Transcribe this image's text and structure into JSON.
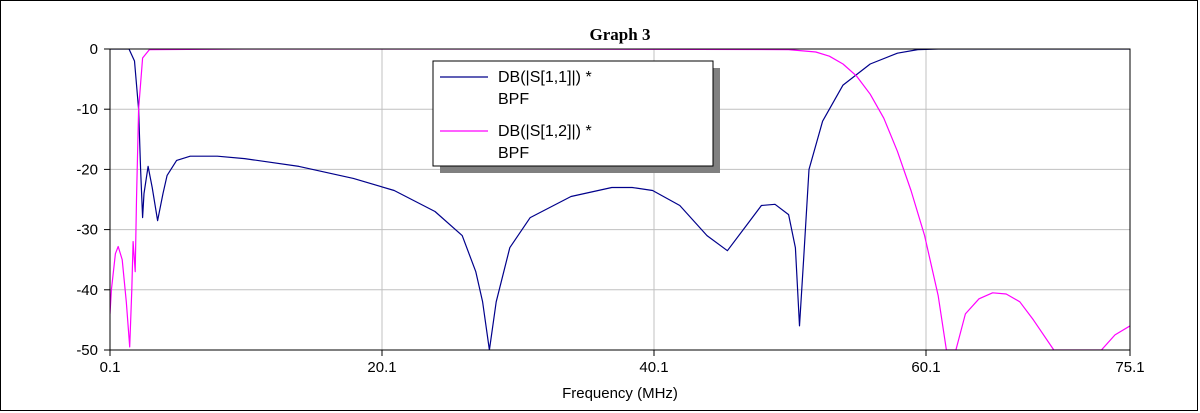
{
  "chart_data": {
    "type": "line",
    "title": "Graph 3",
    "xlabel": "Frequency (MHz)",
    "ylabel": "",
    "xlim": [
      0.1,
      75.1
    ],
    "ylim": [
      -50,
      0
    ],
    "x_ticks": [
      0.1,
      20.1,
      40.1,
      60.1,
      75.1
    ],
    "x_tick_labels": [
      "0.1",
      "20.1",
      "40.1",
      "60.1",
      "75.1"
    ],
    "y_ticks": [
      0,
      -10,
      -20,
      -30,
      -40,
      -50
    ],
    "y_tick_labels": [
      "0",
      "-10",
      "-20",
      "-30",
      "-40",
      "-50"
    ],
    "grid": true,
    "legend_position": "top-center",
    "series": [
      {
        "name": "DB(|S[1,1]|) * BPF",
        "color": "#00008b",
        "x": [
          0.1,
          1.5,
          1.9,
          2.2,
          2.35,
          2.5,
          2.6,
          2.9,
          3.2,
          3.6,
          4.0,
          4.3,
          5.0,
          6.0,
          8.0,
          10.0,
          14.0,
          18.0,
          21.0,
          24.0,
          26.0,
          27.0,
          27.5,
          28.0,
          28.5,
          29.5,
          31.0,
          34.0,
          37.0,
          38.5,
          40.0,
          42.0,
          44.0,
          45.5,
          47.0,
          48.0,
          49.0,
          50.0,
          50.5,
          50.8,
          51.1,
          51.5,
          52.5,
          54.0,
          56.0,
          58.0,
          59.5,
          61.0,
          75.1
        ],
        "y": [
          0,
          0,
          -2,
          -10,
          -20,
          -28,
          -24,
          -19.5,
          -23,
          -28.5,
          -24,
          -21,
          -18.5,
          -17.8,
          -17.8,
          -18.2,
          -19.5,
          -21.5,
          -23.5,
          -27,
          -31,
          -37,
          -42,
          -50,
          -42,
          -33,
          -28,
          -24.5,
          -23,
          -23,
          -23.5,
          -26,
          -31,
          -33.5,
          -29,
          -26,
          -25.8,
          -27.5,
          -33,
          -46,
          -35,
          -20,
          -12,
          -6,
          -2.5,
          -0.7,
          -0.1,
          0,
          0
        ]
      },
      {
        "name": "DB(|S[1,2]|) * BPF",
        "color": "#ff00ff",
        "x": [
          0.1,
          0.2,
          0.5,
          0.7,
          1.0,
          1.3,
          1.55,
          1.7,
          1.8,
          1.95,
          2.05,
          2.2,
          2.5,
          3.0,
          10.0,
          30.0,
          50.0,
          52.0,
          53.0,
          54.0,
          55.0,
          56.0,
          57.0,
          58.0,
          59.0,
          60.0,
          61.0,
          61.6,
          62.0,
          62.3,
          63.0,
          64.0,
          65.0,
          66.0,
          67.0,
          68.0,
          69.5,
          71.5,
          73.0,
          74.0,
          75.1
        ],
        "y": [
          -44,
          -40,
          -34,
          -32.8,
          -35,
          -42,
          -49.5,
          -40,
          -32,
          -37,
          -25,
          -10,
          -1.5,
          -0.1,
          0,
          0,
          -0.1,
          -0.5,
          -1.2,
          -2.5,
          -4.5,
          -7.5,
          -11.5,
          -17,
          -23.5,
          -31,
          -41,
          -50,
          -50,
          -50,
          -44,
          -41.5,
          -40.5,
          -40.7,
          -42,
          -45,
          -50,
          -50,
          -50,
          -47.5,
          -46
        ]
      }
    ]
  }
}
